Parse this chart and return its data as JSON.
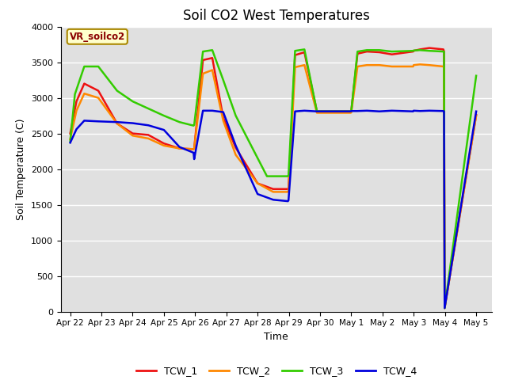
{
  "title": "Soil CO2 West Temperatures",
  "xlabel": "Time",
  "ylabel": "Soil Temperature (C)",
  "annotation": "VR_soilco2",
  "ylim": [
    0,
    4000
  ],
  "yticks": [
    0,
    500,
    1000,
    1500,
    2000,
    2500,
    3000,
    3500,
    4000
  ],
  "background_color": "#e0e0e0",
  "series_colors": {
    "TCW_1": "#ee1111",
    "TCW_2": "#ff8800",
    "TCW_3": "#33cc00",
    "TCW_4": "#0000dd"
  },
  "x_dates": [
    "Apr 22",
    "Apr 23",
    "Apr 24",
    "Apr 25",
    "Apr 26",
    "Apr 27",
    "Apr 28",
    "Apr 29",
    "Apr 30",
    "May 1",
    "May 2",
    "May 3",
    "May 4",
    "May 5"
  ],
  "tcw1_x": [
    0,
    0.2,
    0.45,
    0.9,
    1.5,
    2.0,
    2.5,
    3.0,
    3.5,
    3.95,
    3.97,
    4.25,
    4.55,
    4.9,
    5.3,
    6.0,
    6.5,
    6.97,
    6.99,
    7.2,
    7.5,
    7.9,
    8.3,
    8.98,
    9.0,
    9.2,
    9.5,
    9.9,
    10.3,
    10.98,
    11.0,
    11.2,
    11.5,
    11.95,
    11.97,
    11.99,
    13.0
  ],
  "tcw1_y": [
    2500,
    2950,
    3200,
    3100,
    2640,
    2500,
    2480,
    2360,
    2290,
    2280,
    2290,
    3530,
    3560,
    2720,
    2300,
    1800,
    1720,
    1720,
    1730,
    3600,
    3640,
    2810,
    2810,
    2810,
    2815,
    3620,
    3650,
    3640,
    3610,
    3650,
    3660,
    3680,
    3700,
    3680,
    3650,
    50,
    2760
  ],
  "tcw2_x": [
    0,
    0.2,
    0.45,
    0.9,
    1.5,
    2.0,
    2.5,
    3.0,
    3.5,
    3.95,
    3.97,
    4.25,
    4.55,
    4.9,
    5.3,
    6.0,
    6.5,
    6.97,
    6.99,
    7.2,
    7.5,
    7.9,
    8.3,
    8.98,
    9.0,
    9.2,
    9.5,
    9.9,
    10.3,
    10.98,
    11.0,
    11.2,
    11.5,
    11.95,
    11.97,
    11.99,
    13.0
  ],
  "tcw2_y": [
    2420,
    2820,
    3060,
    3000,
    2640,
    2470,
    2430,
    2330,
    2290,
    2280,
    2290,
    3340,
    3390,
    2680,
    2200,
    1800,
    1680,
    1680,
    1690,
    3430,
    3460,
    2790,
    2790,
    2790,
    2795,
    3440,
    3460,
    3460,
    3440,
    3440,
    3460,
    3470,
    3460,
    3440,
    3430,
    50,
    2750
  ],
  "tcw3_x": [
    0,
    0.15,
    0.45,
    0.9,
    1.5,
    2.0,
    2.5,
    3.0,
    3.5,
    3.95,
    3.97,
    4.25,
    4.55,
    4.9,
    5.3,
    6.3,
    6.97,
    6.99,
    7.2,
    7.5,
    7.9,
    8.3,
    8.98,
    9.0,
    9.2,
    9.5,
    9.9,
    10.3,
    10.98,
    11.0,
    11.2,
    11.5,
    11.95,
    11.97,
    11.99,
    13.0
  ],
  "tcw3_y": [
    2390,
    3050,
    3440,
    3440,
    3100,
    2950,
    2850,
    2750,
    2660,
    2610,
    2620,
    3650,
    3670,
    3250,
    2750,
    1900,
    1900,
    1910,
    3660,
    3680,
    2810,
    2810,
    2810,
    2815,
    3650,
    3670,
    3670,
    3650,
    3660,
    3665,
    3670,
    3660,
    3650,
    3650,
    50,
    3310
  ],
  "tcw4_x": [
    0,
    0.2,
    0.45,
    0.9,
    1.5,
    2.0,
    2.5,
    3.0,
    3.5,
    3.95,
    3.97,
    4.25,
    4.55,
    4.9,
    5.3,
    6.0,
    6.5,
    6.97,
    6.99,
    7.2,
    7.5,
    7.9,
    8.3,
    8.98,
    9.0,
    9.2,
    9.5,
    9.9,
    10.3,
    10.98,
    11.0,
    11.2,
    11.5,
    11.95,
    11.97,
    11.99,
    13.0
  ],
  "tcw4_y": [
    2370,
    2560,
    2680,
    2670,
    2660,
    2645,
    2615,
    2550,
    2310,
    2230,
    2140,
    2820,
    2820,
    2800,
    2330,
    1650,
    1570,
    1550,
    1560,
    2810,
    2820,
    2810,
    2810,
    2810,
    2815,
    2815,
    2820,
    2810,
    2820,
    2810,
    2820,
    2815,
    2820,
    2815,
    2810,
    50,
    2810
  ]
}
